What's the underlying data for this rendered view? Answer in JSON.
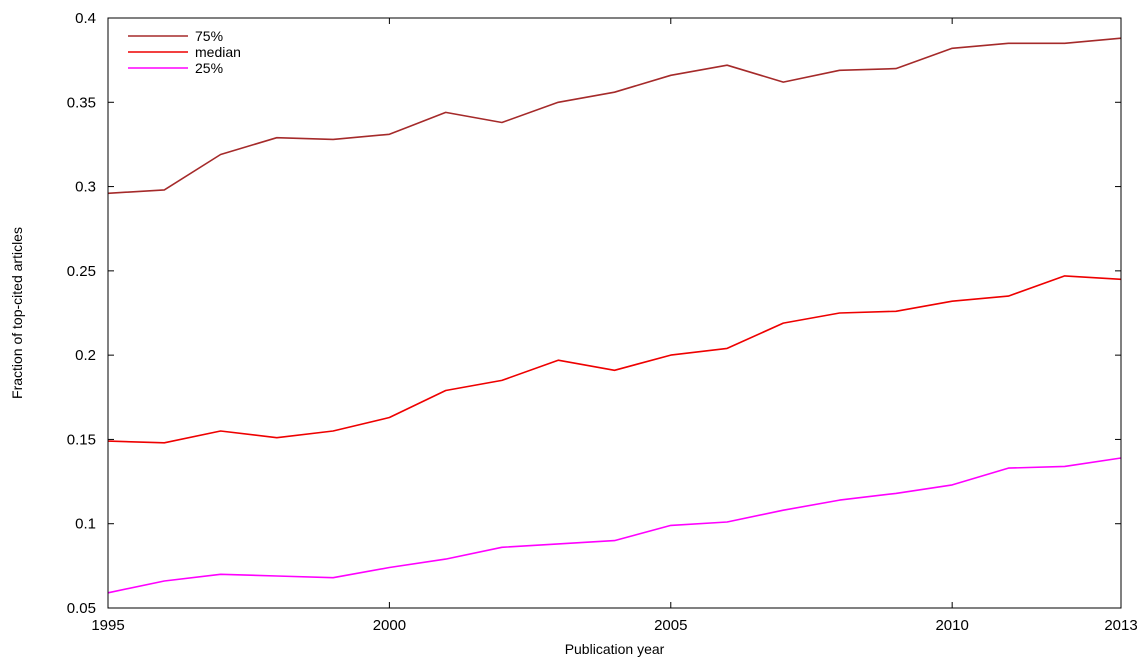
{
  "chart_data": {
    "type": "line",
    "xlabel": "Publication year",
    "ylabel": "Fraction of top-cited articles",
    "xlim": [
      1995,
      2013
    ],
    "ylim": [
      0.05,
      0.4
    ],
    "x_ticks": [
      1995,
      2000,
      2005,
      2010,
      2013
    ],
    "y_ticks": [
      0.05,
      0.1,
      0.15,
      0.2,
      0.25,
      0.3,
      0.35,
      0.4
    ],
    "x_tick_labels": [
      "1995",
      "2000",
      "2005",
      "2010",
      "2013"
    ],
    "y_tick_labels": [
      "0.05",
      "0.1",
      "0.15",
      "0.2",
      "0.25",
      "0.3",
      "0.35",
      "0.4"
    ],
    "grid": false,
    "legend_position": "top-left",
    "x": [
      1995,
      1996,
      1997,
      1998,
      1999,
      2000,
      2001,
      2002,
      2003,
      2004,
      2005,
      2006,
      2007,
      2008,
      2009,
      2010,
      2011,
      2012,
      2013
    ],
    "series": [
      {
        "name": "75%",
        "color": "#a52a2a",
        "values": [
          0.296,
          0.298,
          0.319,
          0.329,
          0.328,
          0.331,
          0.344,
          0.338,
          0.35,
          0.356,
          0.366,
          0.372,
          0.362,
          0.369,
          0.37,
          0.382,
          0.385,
          0.385,
          0.388
        ]
      },
      {
        "name": "median",
        "color": "#ee0000",
        "values": [
          0.149,
          0.148,
          0.155,
          0.151,
          0.155,
          0.163,
          0.179,
          0.185,
          0.197,
          0.191,
          0.2,
          0.204,
          0.219,
          0.225,
          0.226,
          0.232,
          0.235,
          0.247,
          0.245
        ]
      },
      {
        "name": "25%",
        "color": "#ff00ff",
        "values": [
          0.059,
          0.066,
          0.07,
          0.069,
          0.068,
          0.074,
          0.079,
          0.086,
          0.088,
          0.09,
          0.099,
          0.101,
          0.108,
          0.114,
          0.118,
          0.123,
          0.133,
          0.134,
          0.139
        ]
      }
    ]
  }
}
